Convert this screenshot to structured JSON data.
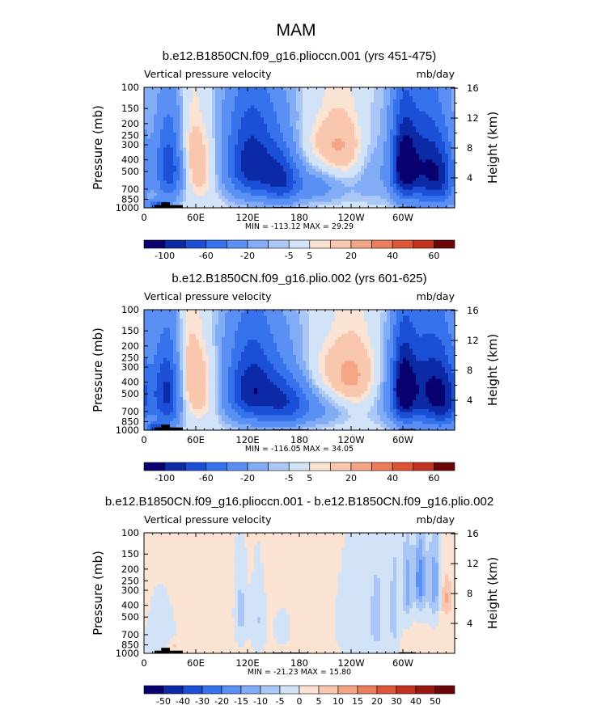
{
  "page_title": "MAM",
  "chart_data": [
    {
      "type": "heatmap",
      "title": "b.e12.B1850CN.f09_g16.plioccn.001 (yrs 451-475)",
      "left_string": "Vertical pressure velocity",
      "right_string": "mb/day",
      "ylabel": "Pressure (mb)",
      "ylabel_right": "Height (km)",
      "x_tick_labels": [
        "0",
        "60E",
        "120E",
        "180",
        "120W",
        "60W"
      ],
      "y_tick_labels": [
        "100",
        "150",
        "200",
        "250",
        "300",
        "400",
        "500",
        "700",
        "850",
        "1000"
      ],
      "y_right_tick_labels": [
        "16",
        "12",
        "8",
        "4"
      ],
      "stats": "MIN = -113.12   MAX =  29.29",
      "levels": [
        "-100",
        "-60",
        "-20",
        "-5",
        "5",
        "20",
        "40",
        "60"
      ],
      "colors": [
        "#08006e",
        "#0c2aa6",
        "#1a4fd6",
        "#3572ec",
        "#5a90f4",
        "#82acf5",
        "#abc7f6",
        "#d3e3f7",
        "#fbe3d4",
        "#f8c7ad",
        "#f3a585",
        "#ec7d5a",
        "#dd5636",
        "#c2321f",
        "#9a1713",
        "#6b0608"
      ],
      "fields": [
        {
          "lon": 30,
          "p": 450,
          "sl": 12,
          "sp": 260,
          "amp": -90
        },
        {
          "lon": 15,
          "p": 950,
          "sl": 8,
          "sp": 60,
          "amp": -60
        },
        {
          "lon": 45,
          "p": 380,
          "sl": 18,
          "sp": 250,
          "amp": 25
        },
        {
          "lon": 72,
          "p": 520,
          "sl": 10,
          "sp": 200,
          "amp": 9
        },
        {
          "lon": 125,
          "p": 420,
          "sl": 22,
          "sp": 260,
          "amp": -95
        },
        {
          "lon": 160,
          "p": 580,
          "sl": 14,
          "sp": 220,
          "amp": -55
        },
        {
          "lon": 195,
          "p": 650,
          "sl": 30,
          "sp": 170,
          "amp": -30
        },
        {
          "lon": 225,
          "p": 330,
          "sl": 25,
          "sp": 180,
          "amp": 24
        },
        {
          "lon": 150,
          "p": 140,
          "sl": 80,
          "sp": 60,
          "amp": -6
        },
        {
          "lon": 300,
          "p": 430,
          "sl": 10,
          "sp": 250,
          "amp": -85
        },
        {
          "lon": 325,
          "p": 460,
          "sl": 20,
          "sp": 300,
          "amp": -90
        },
        {
          "lon": 345,
          "p": 600,
          "sl": 12,
          "sp": 250,
          "amp": -40
        },
        {
          "lon": 265,
          "p": 500,
          "sl": 15,
          "sp": 250,
          "amp": -18
        }
      ]
    },
    {
      "type": "heatmap",
      "title": "b.e12.B1850CN.f09_g16.plio.002 (yrs 601-625)",
      "left_string": "Vertical pressure velocity",
      "right_string": "mb/day",
      "ylabel": "Pressure (mb)",
      "ylabel_right": "Height (km)",
      "x_tick_labels": [
        "0",
        "60E",
        "120E",
        "180",
        "120W",
        "60W"
      ],
      "y_tick_labels": [
        "100",
        "150",
        "200",
        "250",
        "300",
        "400",
        "500",
        "700",
        "850",
        "1000"
      ],
      "y_right_tick_labels": [
        "16",
        "12",
        "8",
        "4"
      ],
      "stats": "MIN = -116.05   MAX =  34.05",
      "levels": [
        "-100",
        "-60",
        "-20",
        "-5",
        "5",
        "20",
        "40",
        "60"
      ],
      "colors": [
        "#08006e",
        "#0c2aa6",
        "#1a4fd6",
        "#3572ec",
        "#5a90f4",
        "#82acf5",
        "#abc7f6",
        "#d3e3f7",
        "#fbe3d4",
        "#f8c7ad",
        "#f3a585",
        "#ec7d5a",
        "#dd5636",
        "#c2321f",
        "#9a1713",
        "#6b0608"
      ],
      "fields": [
        {
          "lon": 28,
          "p": 480,
          "sl": 12,
          "sp": 280,
          "amp": -100
        },
        {
          "lon": 15,
          "p": 950,
          "sl": 8,
          "sp": 60,
          "amp": -65
        },
        {
          "lon": 45,
          "p": 380,
          "sl": 18,
          "sp": 250,
          "amp": 30
        },
        {
          "lon": 75,
          "p": 520,
          "sl": 10,
          "sp": 200,
          "amp": 8
        },
        {
          "lon": 125,
          "p": 450,
          "sl": 22,
          "sp": 260,
          "amp": -95
        },
        {
          "lon": 165,
          "p": 580,
          "sl": 18,
          "sp": 220,
          "amp": -55
        },
        {
          "lon": 200,
          "p": 650,
          "sl": 30,
          "sp": 170,
          "amp": -25
        },
        {
          "lon": 240,
          "p": 380,
          "sl": 30,
          "sp": 200,
          "amp": 26
        },
        {
          "lon": 150,
          "p": 140,
          "sl": 80,
          "sp": 60,
          "amp": -6
        },
        {
          "lon": 300,
          "p": 450,
          "sl": 10,
          "sp": 260,
          "amp": -90
        },
        {
          "lon": 330,
          "p": 460,
          "sl": 22,
          "sp": 300,
          "amp": -95
        },
        {
          "lon": 350,
          "p": 600,
          "sl": 12,
          "sp": 250,
          "amp": -40
        },
        {
          "lon": 275,
          "p": 500,
          "sl": 15,
          "sp": 250,
          "amp": -15
        }
      ]
    },
    {
      "type": "heatmap",
      "title": "b.e12.B1850CN.f09_g16.plioccn.001 - b.e12.B1850CN.f09_g16.plio.002",
      "left_string": "Vertical pressure velocity",
      "right_string": "mb/day",
      "ylabel": "Pressure (mb)",
      "ylabel_right": "Height (km)",
      "x_tick_labels": [
        "0",
        "60E",
        "120E",
        "180",
        "120W",
        "60W"
      ],
      "y_tick_labels": [
        "100",
        "150",
        "200",
        "250",
        "300",
        "400",
        "500",
        "700",
        "850",
        "1000"
      ],
      "y_right_tick_labels": [
        "16",
        "12",
        "8",
        "4"
      ],
      "stats": "MIN = -21.23   MAX =  15.80",
      "levels": [
        "-50",
        "-40",
        "-30",
        "-20",
        "-15",
        "-10",
        "-5",
        "0",
        "5",
        "10",
        "15",
        "20",
        "30",
        "40",
        "50"
      ],
      "colors": [
        "#08006e",
        "#0c2aa6",
        "#1a4fd6",
        "#3572ec",
        "#5a90f4",
        "#82acf5",
        "#abc7f6",
        "#d3e3f7",
        "#fbe3d4",
        "#f8c7ad",
        "#f3a585",
        "#ec7d5a",
        "#dd5636",
        "#c2321f",
        "#9a1713",
        "#6b0608"
      ],
      "fields": [
        {
          "lon": 150,
          "p": 400,
          "sl": 120,
          "sp": 500,
          "amp": 2
        },
        {
          "lon": 20,
          "p": 700,
          "sl": 10,
          "sp": 250,
          "amp": -5
        },
        {
          "lon": 35,
          "p": 880,
          "sl": 6,
          "sp": 70,
          "amp": 6
        },
        {
          "lon": 112,
          "p": 450,
          "sl": 5,
          "sp": 220,
          "amp": -9
        },
        {
          "lon": 132,
          "p": 520,
          "sl": 6,
          "sp": 240,
          "amp": -7
        },
        {
          "lon": 160,
          "p": 600,
          "sl": 10,
          "sp": 200,
          "amp": -3
        },
        {
          "lon": 245,
          "p": 500,
          "sl": 18,
          "sp": 300,
          "amp": -4
        },
        {
          "lon": 270,
          "p": 500,
          "sl": 6,
          "sp": 300,
          "amp": -8
        },
        {
          "lon": 290,
          "p": 450,
          "sl": 4,
          "sp": 280,
          "amp": -10
        },
        {
          "lon": 305,
          "p": 280,
          "sl": 4,
          "sp": 150,
          "amp": -14
        },
        {
          "lon": 320,
          "p": 250,
          "sl": 5,
          "sp": 120,
          "amp": -20
        },
        {
          "lon": 337,
          "p": 270,
          "sl": 5,
          "sp": 140,
          "amp": -15
        },
        {
          "lon": 350,
          "p": 350,
          "sl": 5,
          "sp": 100,
          "amp": 10
        }
      ]
    }
  ]
}
